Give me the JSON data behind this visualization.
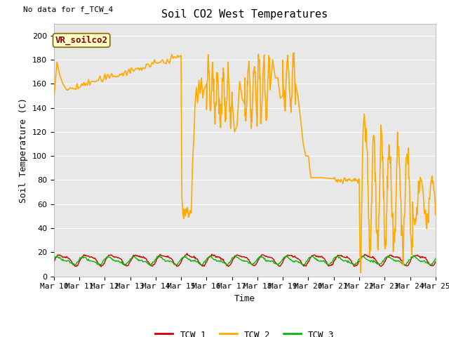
{
  "title": "Soil CO2 West Temperatures",
  "no_data_label": "No data for f_TCW_4",
  "vr_label": "VR_soilco2",
  "xlabel": "Time",
  "ylabel": "Soil Temperature (C)",
  "ylim": [
    0,
    210
  ],
  "yticks": [
    0,
    20,
    40,
    60,
    80,
    100,
    120,
    140,
    160,
    180,
    200
  ],
  "xstart": 10,
  "xend": 25,
  "xtick_labels": [
    "Mar 10",
    "Mar 11",
    "Mar 12",
    "Mar 13",
    "Mar 14",
    "Mar 15",
    "Mar 16",
    "Mar 17",
    "Mar 18",
    "Mar 19",
    "Mar 20",
    "Mar 21",
    "Mar 22",
    "Mar 23",
    "Mar 24",
    "Mar 25"
  ],
  "bg_color": "#e8e8e8",
  "fig_color": "#ffffff",
  "tcw1_color": "#cc0000",
  "tcw2_color": "#ffaa00",
  "tcw3_color": "#00bb00",
  "legend_entries": [
    "TCW_1",
    "TCW_2",
    "TCW_3"
  ],
  "title_fontsize": 11,
  "axis_label_fontsize": 9,
  "tick_fontsize": 8,
  "legend_fontsize": 9,
  "no_data_fontsize": 8,
  "vr_fontsize": 9
}
